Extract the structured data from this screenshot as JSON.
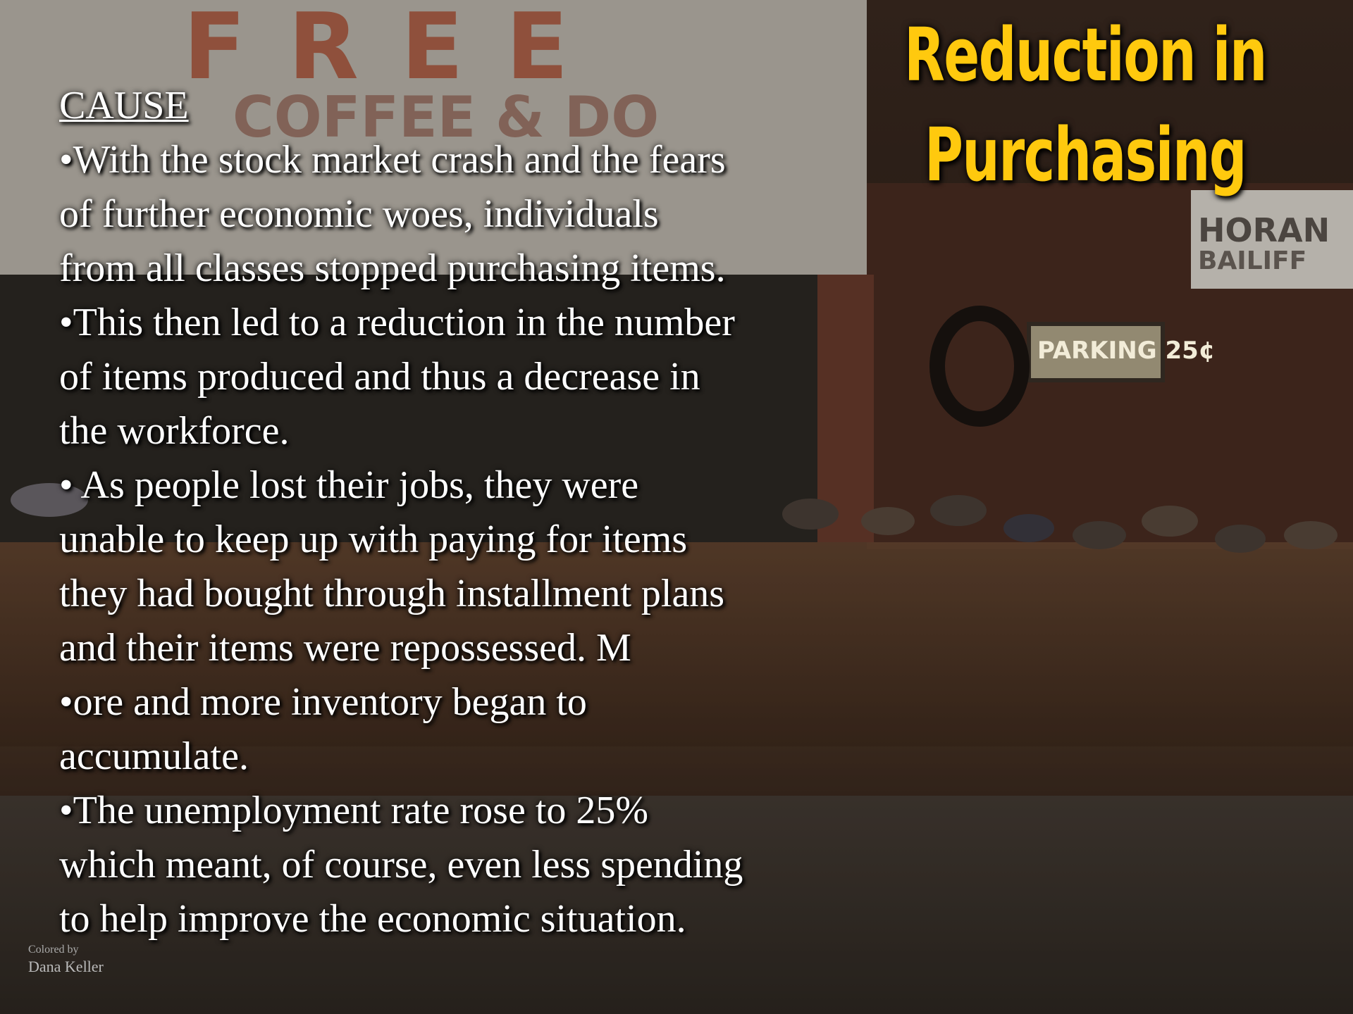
{
  "slide": {
    "title_lines": [
      "Reduction in",
      "Purchasing"
    ],
    "heading": "CAUSE",
    "body_lines": [
      "•With the stock market crash and the fears",
      "of further economic woes, individuals",
      "from all classes stopped purchasing items.",
      "•This then led to a reduction in the number",
      "of items produced and thus a decrease in",
      "the workforce.",
      "• As people lost their jobs, they were",
      "unable to keep up with paying for items",
      "they had bought through installment plans",
      "and their items were repossessed. M",
      "•ore and more inventory began to",
      "accumulate.",
      "•The unemployment rate rose to 25%",
      "which meant, of course, even less spending",
      "to help improve the economic situation."
    ],
    "photo_signs": {
      "free": "FREE",
      "coffee": "COFFEE & DO",
      "horan": "HORAN",
      "bailiff": "BAILIFF",
      "parking": "PARKING 25¢",
      "credit_1": "Colored by",
      "credit_2": "Dana Keller"
    }
  }
}
